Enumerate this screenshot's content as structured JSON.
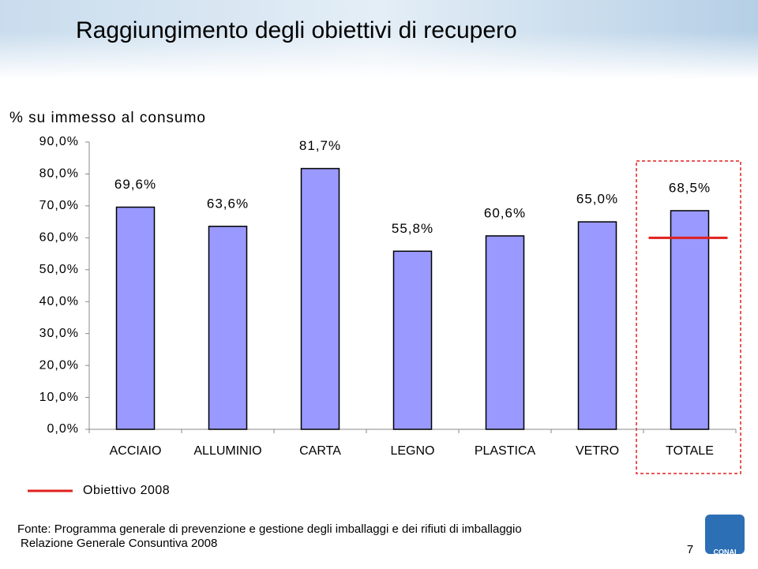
{
  "chart_data": {
    "type": "bar",
    "title": "Raggiungimento degli obiettivi di recupero",
    "y_label": "% su immesso al consumo",
    "categories": [
      "ACCIAIO",
      "ALLUMINIO",
      "CARTA",
      "LEGNO",
      "PLASTICA",
      "VETRO",
      "TOTALE"
    ],
    "values": [
      69.6,
      63.6,
      81.7,
      55.8,
      60.6,
      65.0,
      68.5
    ],
    "value_labels": [
      "69,6%",
      "63,6%",
      "81,7%",
      "55,8%",
      "60,6%",
      "65,0%",
      "68,5%"
    ],
    "color": "#9999ff",
    "ylim": [
      0,
      90
    ],
    "yticks": [
      {
        "value": 0,
        "label": "0,0%"
      },
      {
        "value": 10,
        "label": "10,0%"
      },
      {
        "value": 20,
        "label": "20,0%"
      },
      {
        "value": 30,
        "label": "30,0%"
      },
      {
        "value": 40,
        "label": "40,0%"
      },
      {
        "value": 50,
        "label": "50,0%"
      },
      {
        "value": 60,
        "label": "60,0%"
      },
      {
        "value": 70,
        "label": "70,0%"
      },
      {
        "value": 80,
        "label": "80,0%"
      },
      {
        "value": 90,
        "label": "90,0%"
      }
    ],
    "target": {
      "name": "Obiettivo 2008",
      "value": 60,
      "color": "#e0201e"
    }
  },
  "footer": {
    "source": "Fonte: Programma generale di prevenzione e gestione degli imballaggi e dei rifiuti di imballaggio",
    "report": "Relazione Generale Consuntiva 2008",
    "page": "7",
    "logo": "CONAI"
  }
}
